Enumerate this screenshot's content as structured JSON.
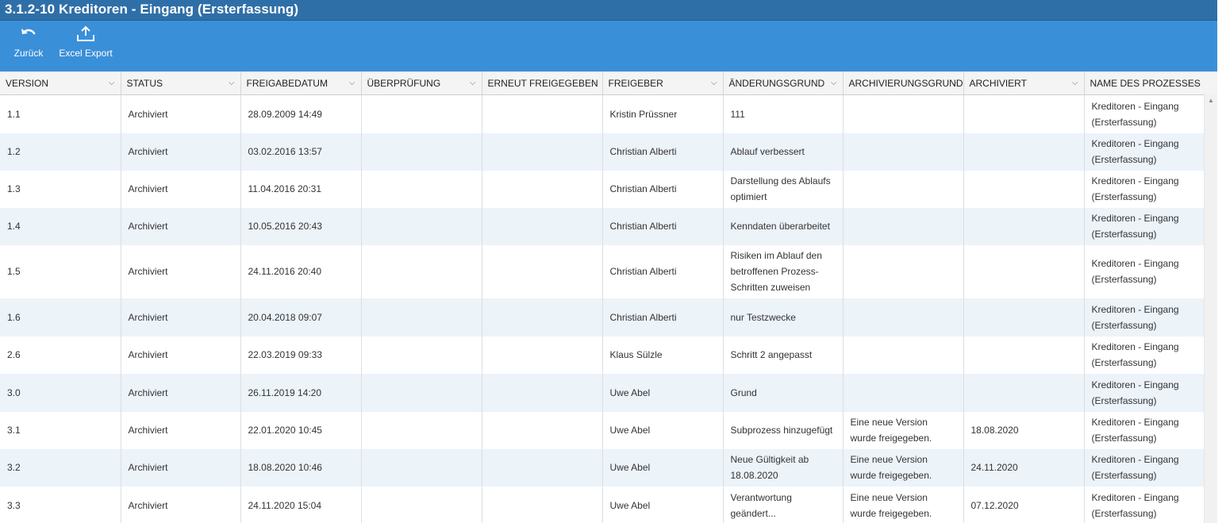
{
  "window": {
    "title": "3.1.2-10 Kreditoren - Eingang (Ersterfassung)"
  },
  "toolbar": {
    "back_label": "Zurück",
    "export_label": "Excel Export"
  },
  "colors": {
    "title_bar": "#2f6fa8",
    "toolbar": "#3a8fd9",
    "row_alt": "#ecf3f9"
  },
  "table": {
    "columns": [
      "VERSION",
      "STATUS",
      "FREIGABEDATUM",
      "ÜBERPRÜFUNG",
      "ERNEUT FREIGEGEBEN",
      "FREIGEBER",
      "ÄNDERUNGSGRUND",
      "ARCHIVIERUNGSGRUND",
      "ARCHIVIERT",
      "NAME DES PROZESSES"
    ],
    "rows": [
      [
        "1.1",
        "Archiviert",
        "28.09.2009 14:49",
        "",
        "",
        "Kristin Prüssner",
        "111",
        "",
        "",
        "Kreditoren - Eingang (Ersterfassung)"
      ],
      [
        "1.2",
        "Archiviert",
        "03.02.2016 13:57",
        "",
        "",
        "Christian Alberti",
        "Ablauf verbessert",
        "",
        "",
        "Kreditoren - Eingang (Ersterfassung)"
      ],
      [
        "1.3",
        "Archiviert",
        "11.04.2016 20:31",
        "",
        "",
        "Christian Alberti",
        "Darstellung des Ablaufs optimiert",
        "",
        "",
        "Kreditoren - Eingang (Ersterfassung)"
      ],
      [
        "1.4",
        "Archiviert",
        "10.05.2016 20:43",
        "",
        "",
        "Christian Alberti",
        "Kenndaten überarbeitet",
        "",
        "",
        "Kreditoren - Eingang (Ersterfassung)"
      ],
      [
        "1.5",
        "Archiviert",
        "24.11.2016 20:40",
        "",
        "",
        "Christian Alberti",
        "Risiken im Ablauf den betroffenen Prozess-Schritten zuweisen",
        "",
        "",
        "Kreditoren - Eingang (Ersterfassung)"
      ],
      [
        "1.6",
        "Archiviert",
        "20.04.2018 09:07",
        "",
        "",
        "Christian Alberti",
        "nur Testzwecke",
        "",
        "",
        "Kreditoren - Eingang (Ersterfassung)"
      ],
      [
        "2.6",
        "Archiviert",
        "22.03.2019 09:33",
        "",
        "",
        "Klaus Sülzle",
        "Schritt 2 angepasst",
        "",
        "",
        "Kreditoren - Eingang (Ersterfassung)"
      ],
      [
        "3.0",
        "Archiviert",
        "26.11.2019 14:20",
        "",
        "",
        "Uwe Abel",
        "Grund",
        "",
        "",
        "Kreditoren - Eingang (Ersterfassung)"
      ],
      [
        "3.1",
        "Archiviert",
        "22.01.2020 10:45",
        "",
        "",
        "Uwe Abel",
        "Subprozess hinzugefügt",
        "Eine neue Version wurde freigegeben.",
        "18.08.2020",
        "Kreditoren - Eingang (Ersterfassung)"
      ],
      [
        "3.2",
        "Archiviert",
        "18.08.2020 10:46",
        "",
        "",
        "Uwe Abel",
        "Neue Gültigkeit ab 18.08.2020",
        "Eine neue Version wurde freigegeben.",
        "24.11.2020",
        "Kreditoren - Eingang (Ersterfassung)"
      ],
      [
        "3.3",
        "Archiviert",
        "24.11.2020 15:04",
        "",
        "",
        "Uwe Abel",
        "Verantwortung geändert...",
        "Eine neue Version wurde freigegeben.",
        "07.12.2020",
        "Kreditoren - Eingang (Ersterfassung)"
      ]
    ]
  }
}
